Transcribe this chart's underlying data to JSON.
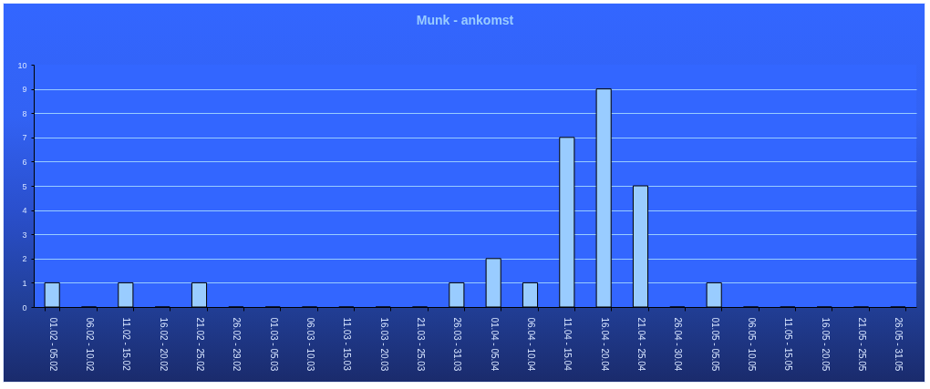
{
  "chart_data": {
    "type": "bar",
    "title": "Munk - ankomst",
    "categories": [
      "01.02 - 05.02",
      "06.02 - 10.02",
      "11.02 - 15.02",
      "16.02 - 20.02",
      "21.02 - 25.02",
      "26.02 - 29.02",
      "01.03 - 05.03",
      "06.03 - 10.03",
      "11.03 - 15.03",
      "16.03 - 20.03",
      "21.03 - 25.03",
      "26.03 - 31.03",
      "01.04 - 05.04",
      "06.04 - 10.04",
      "11.04 - 15.04",
      "16.04 - 20.04",
      "21.04 - 25.04",
      "26.04 - 30.04",
      "01.05 - 05.05",
      "06.05 - 10.05",
      "11.05 - 15.05",
      "16.05 - 20.05",
      "21.05 - 25.05",
      "26.05 - 31.05"
    ],
    "values": [
      1,
      0,
      1,
      0,
      1,
      0,
      0,
      0,
      0,
      0,
      0,
      1,
      2,
      1,
      7,
      9,
      5,
      0,
      1,
      0,
      0,
      0,
      0,
      0
    ],
    "color": "#99ccff",
    "ylim": [
      0,
      10
    ],
    "yticks": [
      0,
      1,
      2,
      3,
      4,
      5,
      6,
      7,
      8,
      9,
      10
    ],
    "grid": "y"
  }
}
